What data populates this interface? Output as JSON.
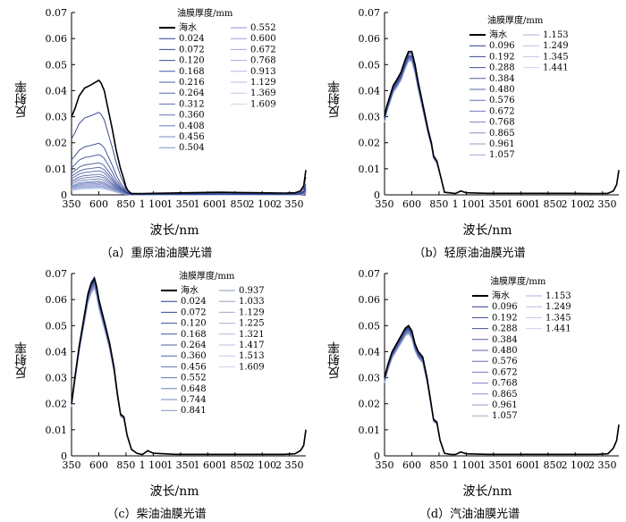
{
  "chart_data": [
    {
      "type": "line",
      "caption": "（a）重原油油膜光谱",
      "xlabel": "波长/nm",
      "ylabel": "反射率",
      "legend_title": "油膜厚度/mm",
      "xlim": [
        350,
        2500
      ],
      "ylim": [
        0,
        0.07
      ],
      "xticks": [
        "350",
        "600",
        "850",
        "1 100",
        "1 350",
        "1 600",
        "1 850",
        "2 100",
        "2 350"
      ],
      "yticks": [
        "0",
        "0.01",
        "0.02",
        "0.03",
        "0.04",
        "0.05",
        "0.06",
        "0.07"
      ],
      "legend": [
        "海水",
        "0.024",
        "0.072",
        "0.120",
        "0.168",
        "0.216",
        "0.264",
        "0.312",
        "0.360",
        "0.408",
        "0.456",
        "0.504",
        "0.552",
        "0.600",
        "0.672",
        "0.768",
        "0.913",
        "1.129",
        "1.369",
        "1.609"
      ],
      "legend_rows": 12,
      "series_base": {
        "x": [
          350,
          380,
          420,
          470,
          520,
          560,
          600,
          620,
          650,
          680,
          720,
          760,
          800,
          830,
          850,
          870,
          900,
          1000,
          1100,
          1400,
          1700,
          1900,
          2100,
          2300,
          2400,
          2450,
          2480,
          2500
        ],
        "y": [
          0.03,
          0.033,
          0.038,
          0.041,
          0.042,
          0.043,
          0.044,
          0.043,
          0.04,
          0.034,
          0.026,
          0.017,
          0.01,
          0.006,
          0.003,
          0.0015,
          0.0005,
          0.0005,
          0.0006,
          0.0008,
          0.001,
          0.0009,
          0.0008,
          0.0007,
          0.0008,
          0.0015,
          0.0035,
          0.0095
        ]
      },
      "series_scales": [
        1,
        0.72,
        0.45,
        0.35,
        0.28,
        0.24,
        0.21,
        0.18,
        0.16,
        0.14,
        0.12,
        0.11,
        0.1,
        0.09,
        0.08,
        0.075,
        0.07,
        0.065,
        0.06,
        0.055
      ]
    },
    {
      "type": "line",
      "caption": "（b）轻原油油膜光谱",
      "xlabel": "波长/nm",
      "ylabel": "反射率",
      "legend_title": "油膜厚度/mm",
      "xlim": [
        350,
        2500
      ],
      "ylim": [
        0,
        0.07
      ],
      "xticks": [
        "350",
        "600",
        "850",
        "1 100",
        "1 350",
        "1 600",
        "1 850",
        "2 100",
        "2 350"
      ],
      "yticks": [
        "0",
        "0.01",
        "0.02",
        "0.03",
        "0.04",
        "0.05",
        "0.06",
        "0.07"
      ],
      "legend": [
        "海水",
        "0.096",
        "0.192",
        "0.288",
        "0.384",
        "0.480",
        "0.576",
        "0.672",
        "0.768",
        "0.865",
        "0.961",
        "1.057",
        "1.153",
        "1.249",
        "1.345",
        "1.441"
      ],
      "legend_rows": 12,
      "series_base": {
        "x": [
          350,
          370,
          400,
          430,
          460,
          500,
          540,
          570,
          600,
          630,
          660,
          700,
          750,
          780,
          800,
          830,
          860,
          900,
          1000,
          1050,
          1100,
          1300,
          1600,
          2000,
          2300,
          2400,
          2450,
          2480,
          2500
        ],
        "y": [
          0.03,
          0.034,
          0.038,
          0.042,
          0.044,
          0.047,
          0.052,
          0.055,
          0.055,
          0.05,
          0.043,
          0.035,
          0.025,
          0.02,
          0.015,
          0.013,
          0.008,
          0.001,
          0.0005,
          0.0015,
          0.0008,
          0.0006,
          0.0006,
          0.0006,
          0.0005,
          0.0006,
          0.0015,
          0.004,
          0.0095
        ]
      },
      "series_scales": [
        1,
        0.99,
        0.98,
        0.97,
        0.965,
        0.96,
        0.955,
        0.95,
        0.948,
        0.945,
        0.942,
        0.94,
        0.938,
        0.935,
        0.932,
        0.93
      ]
    },
    {
      "type": "line",
      "caption": "（c）柴油油膜光谱",
      "xlabel": "波长/nm",
      "ylabel": "反射率",
      "legend_title": "油膜厚度/mm",
      "xlim": [
        350,
        2500
      ],
      "ylim": [
        0,
        0.07
      ],
      "xticks": [
        "350",
        "600",
        "850",
        "1 100",
        "1 350",
        "1 600",
        "1 850",
        "2 100",
        "2 350"
      ],
      "yticks": [
        "0",
        "0.01",
        "0.02",
        "0.03",
        "0.04",
        "0.05",
        "0.06",
        "0.07"
      ],
      "legend": [
        "海水",
        "0.024",
        "0.072",
        "0.120",
        "0.168",
        "0.264",
        "0.360",
        "0.456",
        "0.552",
        "0.648",
        "0.744",
        "0.841",
        "0.937",
        "1.033",
        "1.129",
        "1.225",
        "1.321",
        "1.417",
        "1.513",
        "1.609"
      ],
      "legend_rows": 12,
      "series_base": {
        "x": [
          350,
          380,
          420,
          460,
          500,
          530,
          560,
          580,
          600,
          630,
          660,
          700,
          740,
          770,
          800,
          830,
          860,
          900,
          950,
          1000,
          1050,
          1100,
          1300,
          1600,
          2000,
          2300,
          2400,
          2450,
          2480,
          2500
        ],
        "y": [
          0.02,
          0.03,
          0.042,
          0.052,
          0.062,
          0.066,
          0.068,
          0.065,
          0.06,
          0.055,
          0.05,
          0.043,
          0.034,
          0.024,
          0.016,
          0.015,
          0.008,
          0.0025,
          0.001,
          0.0005,
          0.002,
          0.001,
          0.0006,
          0.0006,
          0.0006,
          0.0006,
          0.0008,
          0.002,
          0.004,
          0.01
        ]
      },
      "series_scales": [
        1,
        1.01,
        1.0,
        0.995,
        0.99,
        0.985,
        0.98,
        0.975,
        0.97,
        0.968,
        0.965,
        0.962,
        0.96,
        0.958,
        0.955,
        0.952,
        0.95,
        0.948,
        0.945,
        0.942
      ]
    },
    {
      "type": "line",
      "caption": "（d）汽油油膜光谱",
      "xlabel": "波长/nm",
      "ylabel": "反射率",
      "legend_title": "油膜厚度/mm",
      "xlim": [
        350,
        2500
      ],
      "ylim": [
        0,
        0.07
      ],
      "xticks": [
        "350",
        "600",
        "850",
        "1 100",
        "1 350",
        "1 600",
        "1 850",
        "2 100",
        "2 350"
      ],
      "yticks": [
        "0",
        "0.01",
        "0.02",
        "0.03",
        "0.04",
        "0.05",
        "0.06",
        "0.07"
      ],
      "legend": [
        "海水",
        "0.096",
        "0.192",
        "0.288",
        "0.384",
        "0.480",
        "0.576",
        "0.672",
        "0.768",
        "0.865",
        "0.961",
        "1.057",
        "1.153",
        "1.249",
        "1.345",
        "1.441"
      ],
      "legend_rows": 12,
      "series_base": {
        "x": [
          350,
          380,
          420,
          460,
          500,
          540,
          570,
          600,
          630,
          660,
          700,
          740,
          770,
          800,
          830,
          860,
          900,
          950,
          1000,
          1050,
          1100,
          1300,
          1600,
          2000,
          2300,
          2400,
          2450,
          2480,
          2500
        ],
        "y": [
          0.03,
          0.035,
          0.04,
          0.043,
          0.046,
          0.049,
          0.05,
          0.048,
          0.043,
          0.04,
          0.038,
          0.03,
          0.022,
          0.014,
          0.013,
          0.006,
          0.001,
          0.0006,
          0.0005,
          0.0015,
          0.0008,
          0.0006,
          0.0006,
          0.0006,
          0.0006,
          0.0008,
          0.003,
          0.006,
          0.012
        ]
      },
      "series_scales": [
        1,
        0.99,
        0.985,
        0.98,
        0.975,
        0.97,
        0.965,
        0.96,
        0.955,
        0.95,
        0.948,
        0.945,
        0.942,
        0.94,
        0.938,
        0.935
      ]
    }
  ]
}
